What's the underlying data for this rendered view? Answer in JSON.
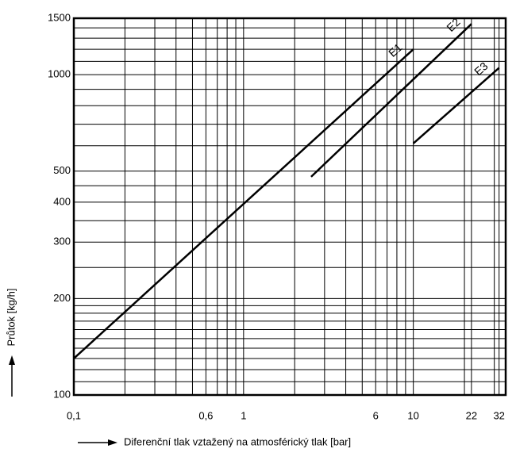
{
  "chart_data": {
    "type": "line",
    "x_label": "Diferenční tlak vztažený na atmosférický tlak [bar]",
    "y_label": "Průtok [kg/h]",
    "x_log": true,
    "y_log": true,
    "grid": true,
    "xlim": [
      0.1,
      35
    ],
    "ylim": [
      100,
      1500
    ],
    "xticks": [
      {
        "value": 0.1,
        "label": "0,1"
      },
      {
        "value": 0.6,
        "label": "0,6"
      },
      1,
      6,
      10,
      22,
      32
    ],
    "yticks": [
      100,
      200,
      300,
      400,
      500,
      1000,
      1500
    ],
    "xgrid": [
      0.2,
      0.3,
      0.4,
      0.5,
      0.7,
      0.8,
      0.9,
      2,
      3,
      4,
      5,
      7,
      8,
      9,
      20,
      30
    ],
    "ygrid": [
      110,
      120,
      130,
      140,
      150,
      160,
      170,
      180,
      190,
      250,
      350,
      450,
      600,
      700,
      800,
      900,
      1100,
      1200,
      1300,
      1400
    ],
    "series": [
      {
        "name": "E1",
        "color": "#000000",
        "x": [
          0.1,
          10
        ],
        "values": [
          130,
          1200
        ]
      },
      {
        "name": "E2",
        "color": "#000000",
        "x": [
          2.5,
          22
        ],
        "values": [
          480,
          1440
        ]
      },
      {
        "name": "E3",
        "color": "#000000",
        "x": [
          10,
          32
        ],
        "values": [
          610,
          1050
        ]
      }
    ]
  }
}
